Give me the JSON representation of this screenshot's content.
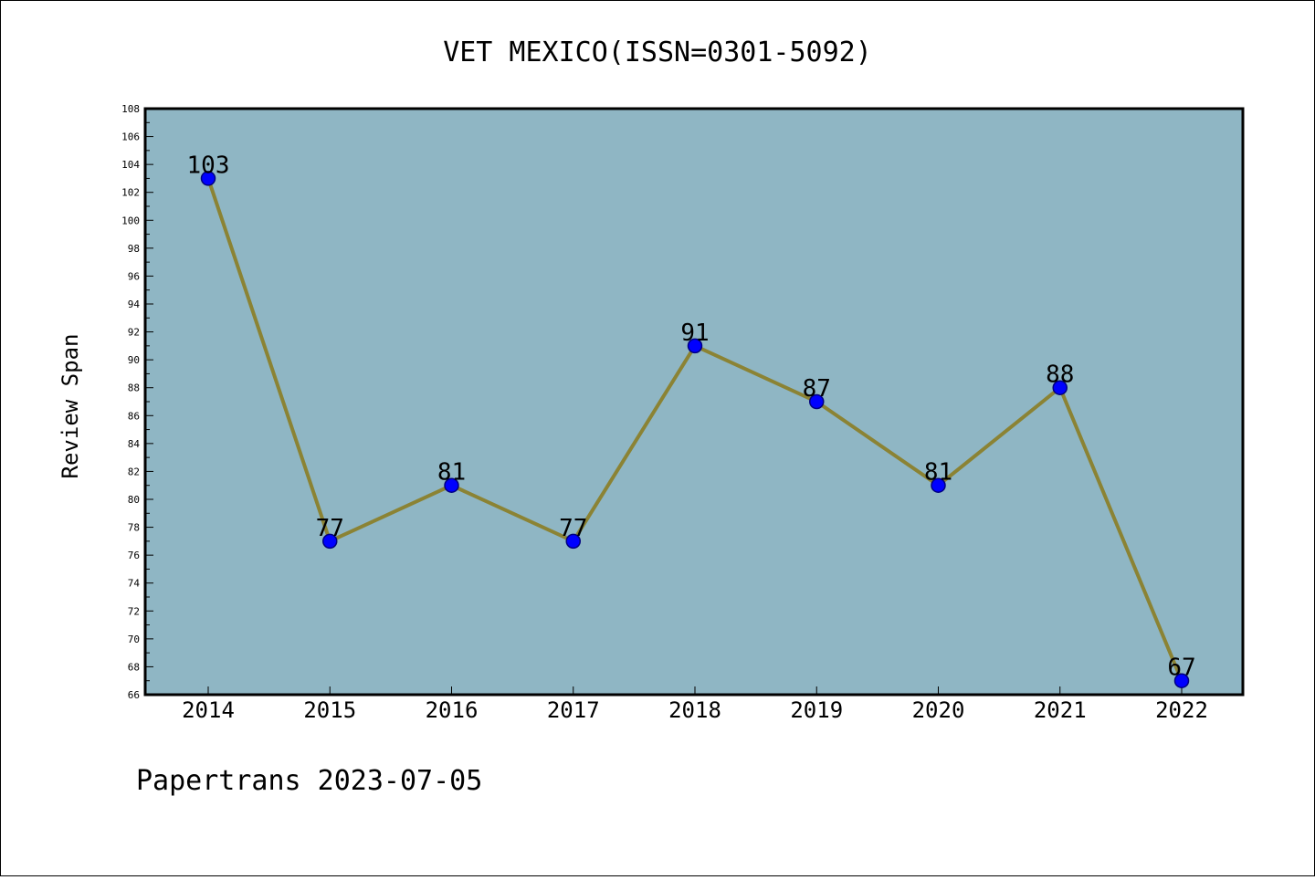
{
  "chart_data": {
    "type": "line",
    "title": "VET MEXICO(ISSN=0301-5092)",
    "xlabel": "",
    "ylabel": "Review Span",
    "categories": [
      "2014",
      "2015",
      "2016",
      "2017",
      "2018",
      "2019",
      "2020",
      "2021",
      "2022"
    ],
    "series": [
      {
        "values": [
          103,
          77,
          81,
          77,
          91,
          87,
          81,
          88,
          67
        ]
      }
    ],
    "ylim": [
      66,
      108
    ],
    "yticks": [
      66,
      68,
      70,
      72,
      74,
      76,
      78,
      80,
      82,
      84,
      86,
      88,
      90,
      92,
      94,
      96,
      98,
      100,
      102,
      104,
      106,
      108
    ],
    "data_labels": [
      "103",
      "77",
      "81",
      "77",
      "91",
      "87",
      "81",
      "88",
      "67"
    ],
    "grid": false,
    "legend": "none",
    "colors": {
      "plot_background": "#8fb6c4",
      "line": "#8b8334",
      "marker": "#0000ff",
      "marker_edge": "#000080"
    }
  },
  "footer": "Papertrans 2023-07-05"
}
